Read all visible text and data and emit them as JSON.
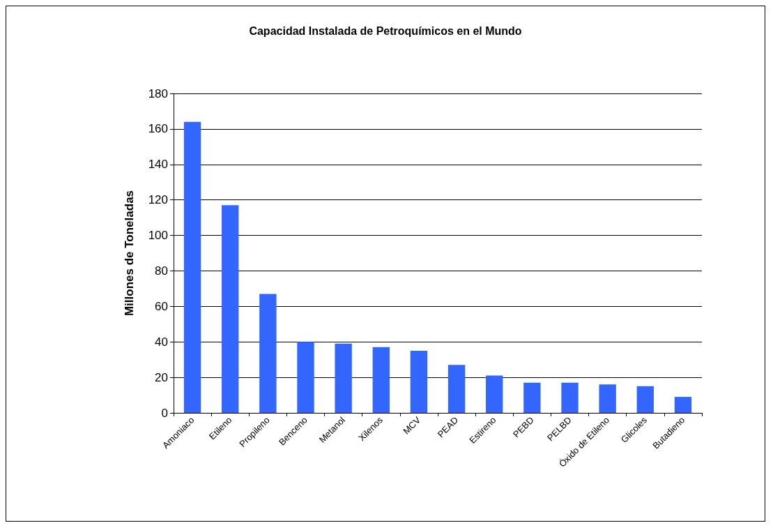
{
  "chart_data": {
    "type": "bar",
    "title": "Capacidad Instalada de Petroquímicos en el Mundo",
    "ylabel": "Millones de Toneladas",
    "categories": [
      "Amoniaco",
      "Etileno",
      "Propileno",
      "Benceno",
      "Metanol",
      "Xilenos",
      "MCV",
      "PEAD",
      "Estireno",
      "PEBD",
      "PELBD",
      "Óxido de Etileno",
      "Glicoles",
      "Butadieno"
    ],
    "values": [
      164,
      117,
      67,
      40,
      39,
      37,
      35,
      27,
      21,
      17,
      17,
      16,
      15,
      9
    ],
    "color": "#3366ff",
    "ylim": [
      0,
      180
    ],
    "yticks": [
      0,
      20,
      40,
      60,
      80,
      100,
      120,
      140,
      160,
      180
    ],
    "grid": "y"
  }
}
